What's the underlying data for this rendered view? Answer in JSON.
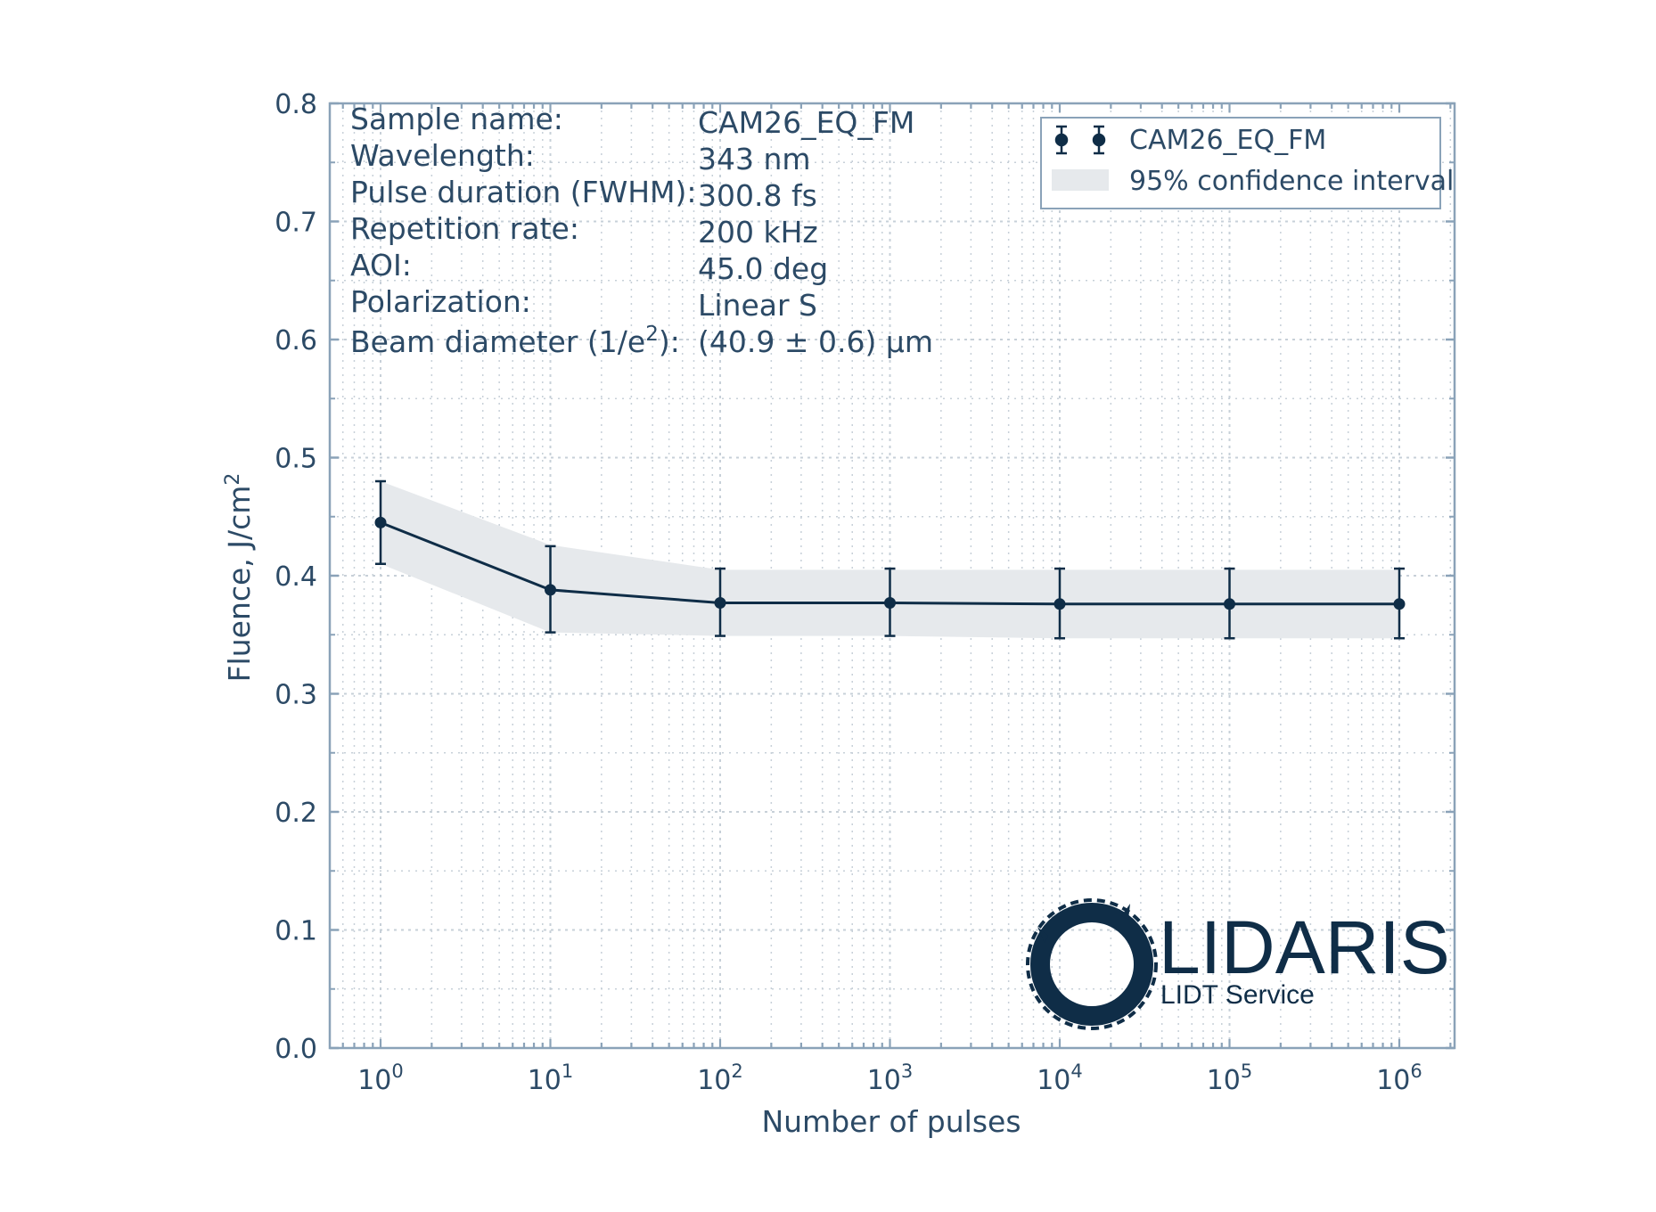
{
  "chart_data": {
    "type": "line",
    "xscale": "log",
    "x": [
      1,
      10,
      100,
      1000,
      10000,
      100000,
      1000000
    ],
    "xtick_labels": [
      {
        "base": "10",
        "exp": "0"
      },
      {
        "base": "10",
        "exp": "1"
      },
      {
        "base": "10",
        "exp": "2"
      },
      {
        "base": "10",
        "exp": "3"
      },
      {
        "base": "10",
        "exp": "4"
      },
      {
        "base": "10",
        "exp": "5"
      },
      {
        "base": "10",
        "exp": "6"
      }
    ],
    "ytick_labels": [
      "0.0",
      "0.1",
      "0.2",
      "0.3",
      "0.4",
      "0.5",
      "0.6",
      "0.7",
      "0.8"
    ],
    "ylim": [
      0,
      0.8
    ],
    "xlabel": "Number of pulses",
    "ylabel_main": "Fluence, J/cm",
    "ylabel_sup": "2",
    "grid": true,
    "series": [
      {
        "name": "CAM26_EQ_FM",
        "values": [
          0.445,
          0.388,
          0.377,
          0.377,
          0.376,
          0.376,
          0.376
        ],
        "err_low": [
          0.41,
          0.352,
          0.349,
          0.349,
          0.347,
          0.347,
          0.347
        ],
        "err_high": [
          0.48,
          0.425,
          0.406,
          0.406,
          0.406,
          0.406,
          0.406
        ],
        "color": "#0f2d47"
      }
    ],
    "confidence_band": {
      "name": "95% confidence interval",
      "lower": [
        0.41,
        0.352,
        0.349,
        0.349,
        0.347,
        0.347,
        0.347
      ],
      "upper": [
        0.48,
        0.426,
        0.405,
        0.405,
        0.405,
        0.405,
        0.405
      ],
      "color": "#e6e9ec"
    },
    "legend_position": "top-right",
    "info": {
      "labels": [
        "Sample name:",
        "Wavelength:",
        "Pulse duration (FWHM):",
        "Repetition rate:",
        "AOI:",
        "Polarization:"
      ],
      "values": [
        "CAM26_EQ_FM",
        "343 nm",
        "300.8 fs",
        "200 kHz",
        "45.0 deg",
        "Linear S"
      ],
      "beam_label_main": "Beam diameter (1/e",
      "beam_label_sup": "2",
      "beam_label_end": "):",
      "beam_value": "(40.9 ± 0.6) μm"
    }
  },
  "logo": {
    "name": "LIDARIS",
    "tagline": "LIDT Service"
  },
  "colors": {
    "axis": "#8aa2b8",
    "text": "#2c4a66",
    "line": "#0f2d47",
    "grid": "#c7d0d8",
    "band": "#e6e9ec"
  }
}
